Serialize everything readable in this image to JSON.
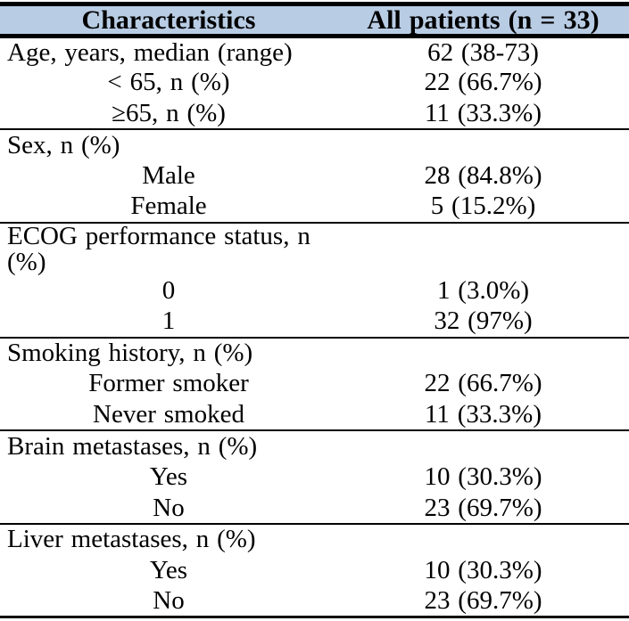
{
  "table": {
    "header_bg": "#B8CCE4",
    "rule_color": "#000000",
    "columns": [
      "Characteristics",
      "All patients (n = 33)"
    ],
    "rows": [
      {
        "type": "section",
        "label": "Age, years, median (range)",
        "value": "62 (38-73)"
      },
      {
        "type": "sub",
        "label": "< 65, n (%)",
        "value": "22 (66.7%)"
      },
      {
        "type": "sub",
        "label": "≥65, n (%)",
        "value": "11 (33.3%)"
      },
      {
        "type": "section",
        "label": "Sex, n (%)",
        "value": ""
      },
      {
        "type": "sub",
        "label": "Male",
        "value": "28 (84.8%)"
      },
      {
        "type": "sub",
        "label": "Female",
        "value": "5 (15.2%)"
      },
      {
        "type": "section",
        "label": "ECOG performance status, n (%)",
        "value": ""
      },
      {
        "type": "sub",
        "label": "0",
        "value": "1 (3.0%)"
      },
      {
        "type": "sub",
        "label": "1",
        "value": "32 (97%)"
      },
      {
        "type": "section",
        "label": "Smoking history, n (%)",
        "value": ""
      },
      {
        "type": "sub",
        "label": "Former smoker",
        "value": "22 (66.7%)"
      },
      {
        "type": "sub",
        "label": "Never smoked",
        "value": "11 (33.3%)"
      },
      {
        "type": "section",
        "label": "Brain metastases, n (%)",
        "value": ""
      },
      {
        "type": "sub",
        "label": "Yes",
        "value": "10 (30.3%)"
      },
      {
        "type": "sub",
        "label": "No",
        "value": "23 (69.7%)"
      },
      {
        "type": "section",
        "label": "Liver metastases, n (%)",
        "value": ""
      },
      {
        "type": "sub",
        "label": "Yes",
        "value": "10 (30.3%)"
      },
      {
        "type": "sub",
        "label": "No",
        "value": "23 (69.7%)"
      }
    ]
  }
}
